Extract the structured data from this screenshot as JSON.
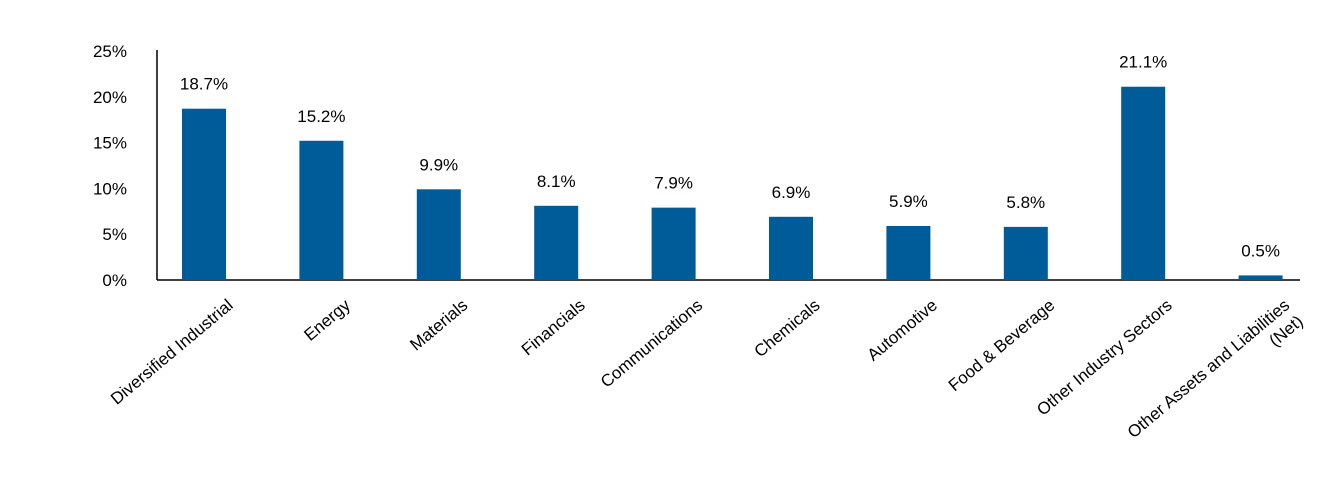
{
  "chart_data": {
    "type": "bar",
    "categories": [
      "Diversified Industrial",
      "Energy",
      "Materials",
      "Financials",
      "Communications",
      "Chemicals",
      "Automotive",
      "Food & Beverage",
      "Other Industry Sectors",
      "Other Assets and Liabilities (Net)"
    ],
    "category_lines": [
      [
        "Diversified Industrial"
      ],
      [
        "Energy"
      ],
      [
        "Materials"
      ],
      [
        "Financials"
      ],
      [
        "Communications"
      ],
      [
        "Chemicals"
      ],
      [
        "Automotive"
      ],
      [
        "Food & Beverage"
      ],
      [
        "Other Industry Sectors"
      ],
      [
        "Other Assets and Liabilities",
        "(Net)"
      ]
    ],
    "values": [
      18.7,
      15.2,
      9.9,
      8.1,
      7.9,
      6.9,
      5.9,
      5.8,
      21.1,
      0.5
    ],
    "data_labels": [
      "18.7%",
      "15.2%",
      "9.9%",
      "8.1%",
      "7.9%",
      "6.9%",
      "5.9%",
      "5.8%",
      "21.1%",
      "0.5%"
    ],
    "ylim": [
      0,
      25
    ],
    "yticks": [
      0,
      5,
      10,
      15,
      20,
      25
    ],
    "ytick_labels": [
      "0%",
      "5%",
      "10%",
      "15%",
      "20%",
      "25%"
    ],
    "grid": false,
    "bar_color": "#005b99"
  }
}
